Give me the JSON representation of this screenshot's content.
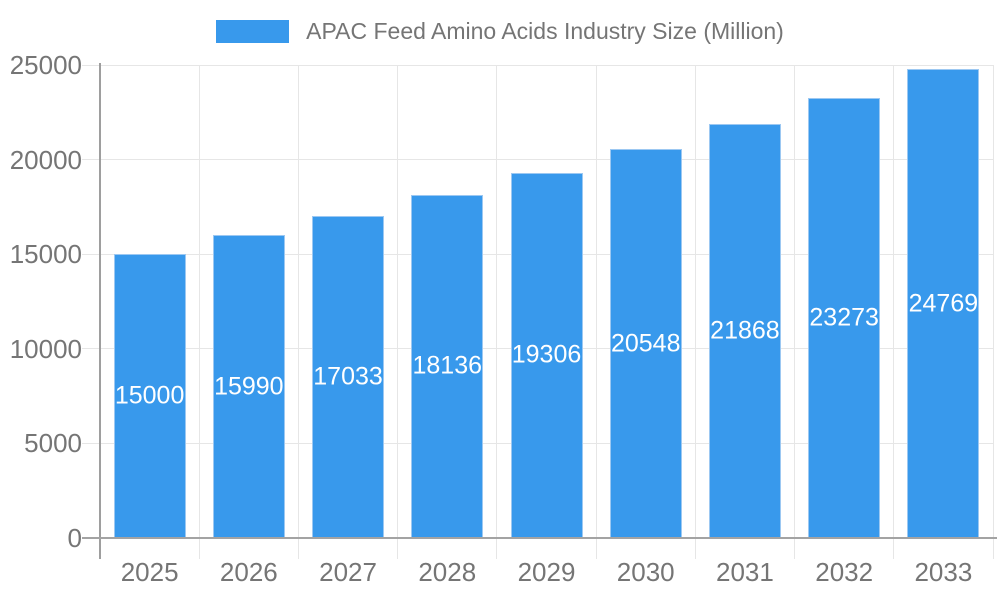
{
  "chart_data": {
    "type": "bar",
    "title": "APAC Feed Amino Acids Industry Size (Million)",
    "categories": [
      "2025",
      "2026",
      "2027",
      "2028",
      "2029",
      "2030",
      "2031",
      "2032",
      "2033"
    ],
    "values": [
      15000,
      15990,
      17033,
      18136,
      19306,
      20548,
      21868,
      23273,
      24769
    ],
    "xlabel": "",
    "ylabel": "",
    "ylim": [
      0,
      25000
    ],
    "yticks": [
      {
        "value": 0,
        "label": "0"
      },
      {
        "value": 5000,
        "label": "5000"
      },
      {
        "value": 10000,
        "label": "10000"
      },
      {
        "value": 15000,
        "label": "15000"
      },
      {
        "value": 20000,
        "label": "20000"
      },
      {
        "value": 25000,
        "label": "25000"
      }
    ],
    "grid": true,
    "legend_position": "top",
    "bar_color": "#3899EC",
    "bar_border_color": "#9cc8f2",
    "value_label_color": "#ffffff",
    "axis_text_color": "#757575",
    "gridline_color": "#e6e6e6",
    "axis_line_color": "#9e9e9e"
  }
}
